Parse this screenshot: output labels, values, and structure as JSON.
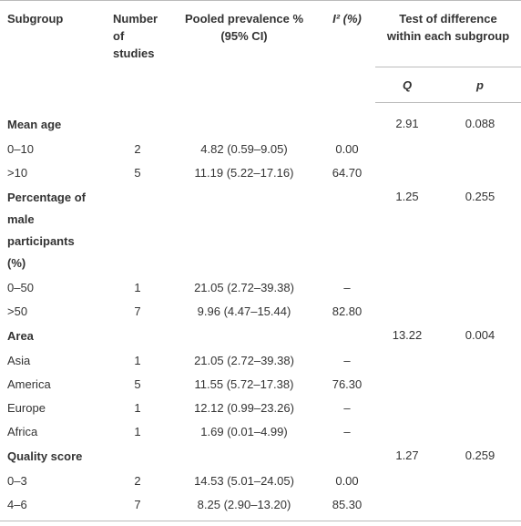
{
  "header": {
    "subgroup": "Subgroup",
    "number_of_studies": "Number of studies",
    "pooled_prevalence": "Pooled prevalence % (95% CI)",
    "i2": "I² (%)",
    "test_of_difference": "Test of difference within each subgroup",
    "q": "Q",
    "p": "p"
  },
  "groups": [
    {
      "title": "Mean age",
      "q": "2.91",
      "p": "0.088",
      "rows": [
        {
          "subgroup": "0–10",
          "n": "2",
          "pooled": "4.82 (0.59–9.05)",
          "i2": "0.00"
        },
        {
          "subgroup": ">10",
          "n": "5",
          "pooled": "11.19 (5.22–17.16)",
          "i2": "64.70"
        }
      ]
    },
    {
      "title": "Percentage of male participants (%)",
      "q": "1.25",
      "p": "0.255",
      "rows": [
        {
          "subgroup": "0–50",
          "n": "1",
          "pooled": "21.05 (2.72–39.38)",
          "i2": "–"
        },
        {
          "subgroup": ">50",
          "n": "7",
          "pooled": "9.96 (4.47–15.44)",
          "i2": "82.80"
        }
      ]
    },
    {
      "title": "Area",
      "q": "13.22",
      "p": "0.004",
      "rows": [
        {
          "subgroup": "Asia",
          "n": "1",
          "pooled": "21.05 (2.72–39.38)",
          "i2": "–"
        },
        {
          "subgroup": "America",
          "n": "5",
          "pooled": "11.55 (5.72–17.38)",
          "i2": "76.30"
        },
        {
          "subgroup": "Europe",
          "n": "1",
          "pooled": "12.12 (0.99–23.26)",
          "i2": "–"
        },
        {
          "subgroup": "Africa",
          "n": "1",
          "pooled": "1.69 (0.01–4.99)",
          "i2": "–"
        }
      ]
    },
    {
      "title": "Quality score",
      "q": "1.27",
      "p": "0.259",
      "rows": [
        {
          "subgroup": "0–3",
          "n": "2",
          "pooled": "14.53 (5.01–24.05)",
          "i2": "0.00"
        },
        {
          "subgroup": "4–6",
          "n": "7",
          "pooled": "8.25 (2.90–13.20)",
          "i2": "85.30"
        }
      ]
    }
  ]
}
